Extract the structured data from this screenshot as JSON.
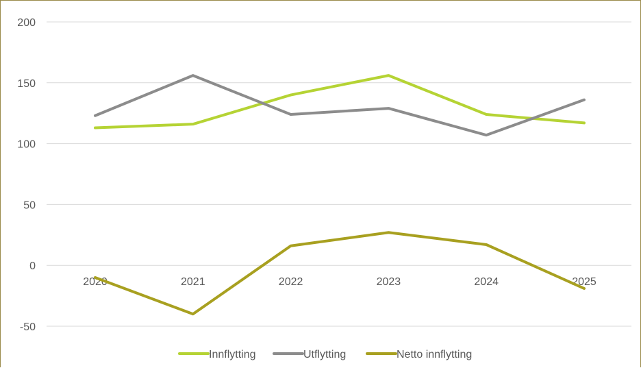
{
  "chart_data": {
    "type": "line",
    "title": "",
    "xlabel": "",
    "ylabel": "",
    "categories": [
      "2020",
      "2021",
      "2022",
      "2023",
      "2024",
      "2025"
    ],
    "ylim": [
      -50,
      200
    ],
    "yticks": [
      200,
      150,
      100,
      50,
      0,
      -50
    ],
    "grid": true,
    "legend_position": "bottom",
    "series": [
      {
        "name": "Innflytting",
        "color": "#b5d334",
        "values": [
          113,
          116,
          140,
          156,
          124,
          117
        ]
      },
      {
        "name": "Utflytting",
        "color": "#8c8c8c",
        "values": [
          123,
          156,
          124,
          129,
          107,
          136
        ]
      },
      {
        "name": "Netto innflytting",
        "color": "#a8a020",
        "values": [
          -10,
          -40,
          16,
          27,
          17,
          -19
        ]
      }
    ]
  }
}
